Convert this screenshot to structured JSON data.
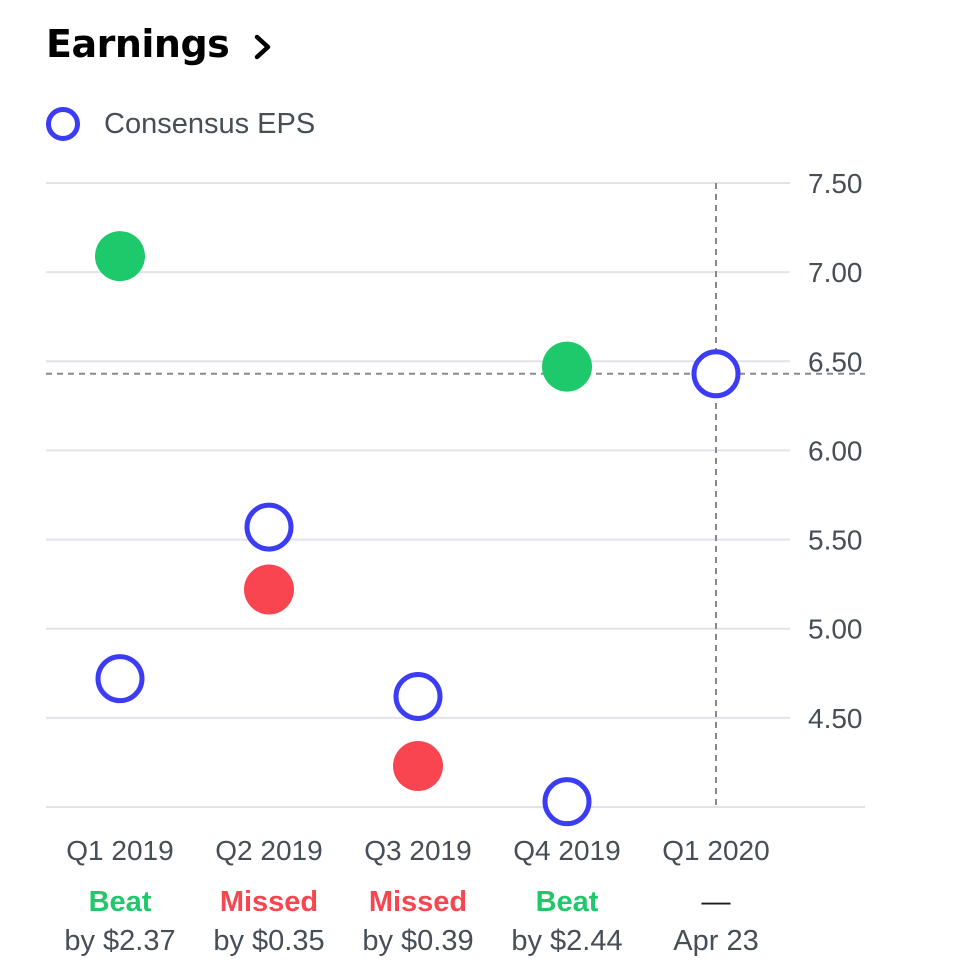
{
  "header": {
    "title": "Earnings"
  },
  "legend": {
    "label": "Consensus EPS"
  },
  "colors": {
    "beat": "#1ec96b",
    "missed": "#f8454f",
    "consensus": "#3c3cf5",
    "grid": "#e2e2ea",
    "axis_text": "#464e56"
  },
  "chart_data": {
    "type": "scatter",
    "categories": [
      "Q1 2019",
      "Q2 2019",
      "Q3 2019",
      "Q4 2019",
      "Q1 2020"
    ],
    "series": [
      {
        "name": "Consensus EPS",
        "values": [
          4.72,
          5.57,
          4.62,
          4.03,
          6.43
        ]
      },
      {
        "name": "",
        "values": [
          7.09,
          5.22,
          4.23,
          6.47,
          null
        ]
      }
    ],
    "yticks": [
      "7.50",
      "7.00",
      "6.50",
      "6.00",
      "5.50",
      "5.00",
      "4.50"
    ],
    "ylim": [
      4.0,
      7.5
    ],
    "results": [
      {
        "status": "Beat",
        "detail": "by $2.37",
        "kind": "beat"
      },
      {
        "status": "Missed",
        "detail": "by $0.35",
        "kind": "missed"
      },
      {
        "status": "Missed",
        "detail": "by $0.39",
        "kind": "missed"
      },
      {
        "status": "Beat",
        "detail": "by $2.44",
        "kind": "beat"
      },
      {
        "status": "—",
        "detail": "Apr 23",
        "kind": "upcoming"
      }
    ],
    "crosshair": {
      "category": "Q1 2020",
      "value": 6.43
    },
    "grid": true
  }
}
